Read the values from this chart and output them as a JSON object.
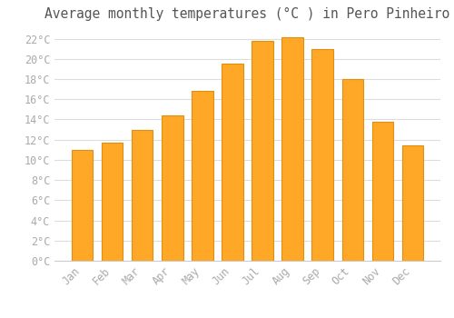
{
  "title": "Average monthly temperatures (°C ) in Pero Pinheiro",
  "months": [
    "Jan",
    "Feb",
    "Mar",
    "Apr",
    "May",
    "Jun",
    "Jul",
    "Aug",
    "Sep",
    "Oct",
    "Nov",
    "Dec"
  ],
  "values": [
    11.0,
    11.7,
    13.0,
    14.4,
    16.8,
    19.5,
    21.8,
    22.1,
    21.0,
    18.0,
    13.8,
    11.4
  ],
  "bar_color": "#FFA827",
  "bar_edge_color": "#E09010",
  "background_color": "#ffffff",
  "plot_bg_color": "#ffffff",
  "grid_color": "#dddddd",
  "tick_label_color": "#aaaaaa",
  "title_color": "#555555",
  "ylim": [
    0,
    23
  ],
  "ytick_step": 2,
  "title_fontsize": 10.5,
  "tick_fontsize": 8.5
}
